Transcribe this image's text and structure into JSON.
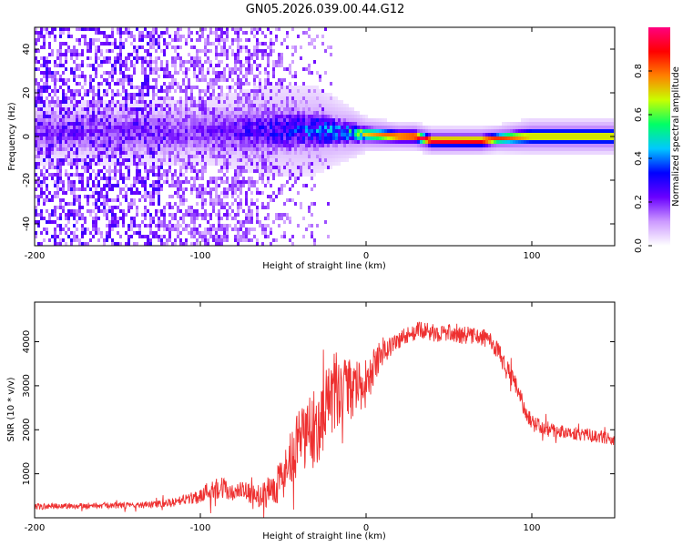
{
  "title": "GN05.2026.039.00.44.G12",
  "chart_data": [
    {
      "type": "heatmap",
      "name": "spectrogram",
      "xlabel": "Height of straight line (km)",
      "ylabel": "Frequency (Hz)",
      "xlim": [
        -200,
        150
      ],
      "ylim": [
        -50,
        50
      ],
      "xticks": [
        -200,
        -100,
        0,
        100
      ],
      "yticks": [
        -40,
        -20,
        0,
        20,
        40
      ],
      "colorbar": {
        "label": "Normalized spectral amplitude",
        "range": [
          0,
          1
        ],
        "ticks": [
          0,
          0.2,
          0.4,
          0.6,
          0.8
        ],
        "tick_labels": [
          "0.0",
          "0.2",
          "0.4",
          "0.6",
          "0.8"
        ],
        "colormap": [
          "#ffffff",
          "#cc99ff",
          "#6a00ff",
          "#0000ff",
          "#00c8ff",
          "#00ff66",
          "#c8ff00",
          "#ff8000",
          "#ff0000",
          "#ff0080"
        ]
      },
      "noise_region": {
        "x_from": -200,
        "x_to": -80,
        "amplitude": 0.12
      },
      "signal_ridge": [
        {
          "x": -100,
          "freq": 2,
          "width": 6,
          "amp": 0.22
        },
        {
          "x": -60,
          "freq": 3,
          "width": 7,
          "amp": 0.3
        },
        {
          "x": -30,
          "freq": 3,
          "width": 6,
          "amp": 0.4
        },
        {
          "x": -15,
          "freq": 2,
          "width": 4,
          "amp": 0.45
        },
        {
          "x": 0,
          "freq": 1,
          "width": 2,
          "amp": 0.7
        },
        {
          "x": 20,
          "freq": 0,
          "width": 1.5,
          "amp": 0.9
        },
        {
          "x": 30,
          "freq": 0,
          "width": 1.5,
          "amp": 0.95
        },
        {
          "x": 40,
          "freq": -2,
          "width": 1.5,
          "amp": 0.97
        },
        {
          "x": 70,
          "freq": -2,
          "width": 1.5,
          "amp": 0.95
        },
        {
          "x": 80,
          "freq": -1,
          "width": 1.5,
          "amp": 0.85
        },
        {
          "x": 100,
          "freq": 0,
          "width": 2,
          "amp": 0.75
        },
        {
          "x": 150,
          "freq": 0,
          "width": 2,
          "amp": 0.75
        }
      ]
    },
    {
      "type": "line",
      "name": "snr",
      "xlabel": "Height of straight line (km)",
      "ylabel": "SNR (10 * v/v)",
      "xlim": [
        -200,
        150
      ],
      "ylim": [
        0,
        4900
      ],
      "xticks": [
        -200,
        -100,
        0,
        100
      ],
      "yticks": [
        1000,
        2000,
        3000,
        4000
      ],
      "series": [
        {
          "name": "SNR",
          "color": "#ee3030",
          "x": [
            -200,
            -180,
            -160,
            -140,
            -120,
            -110,
            -100,
            -95,
            -90,
            -85,
            -80,
            -75,
            -70,
            -65,
            -60,
            -55,
            -50,
            -45,
            -40,
            -35,
            -30,
            -25,
            -20,
            -15,
            -10,
            -5,
            0,
            5,
            10,
            15,
            20,
            25,
            30,
            35,
            40,
            50,
            60,
            70,
            75,
            80,
            85,
            90,
            95,
            100,
            110,
            120,
            130,
            140,
            150
          ],
          "y": [
            250,
            270,
            280,
            280,
            320,
            400,
            500,
            620,
            720,
            640,
            540,
            600,
            560,
            490,
            560,
            720,
            950,
            1300,
            1700,
            1950,
            2000,
            2500,
            2700,
            2850,
            2900,
            2950,
            3000,
            3450,
            3800,
            3900,
            4050,
            4150,
            4250,
            4250,
            4200,
            4200,
            4150,
            4100,
            4050,
            3750,
            3350,
            3050,
            2550,
            2150,
            2000,
            1950,
            1900,
            1850,
            1750
          ],
          "noise": [
            70,
            70,
            70,
            70,
            90,
            120,
            180,
            230,
            300,
            260,
            180,
            240,
            220,
            260,
            320,
            420,
            560,
            700,
            800,
            880,
            900,
            900,
            880,
            820,
            700,
            600,
            500,
            400,
            330,
            260,
            220,
            200,
            200,
            200,
            200,
            200,
            200,
            200,
            200,
            230,
            240,
            220,
            200,
            180,
            160,
            150,
            150,
            150,
            140
          ]
        }
      ]
    }
  ]
}
